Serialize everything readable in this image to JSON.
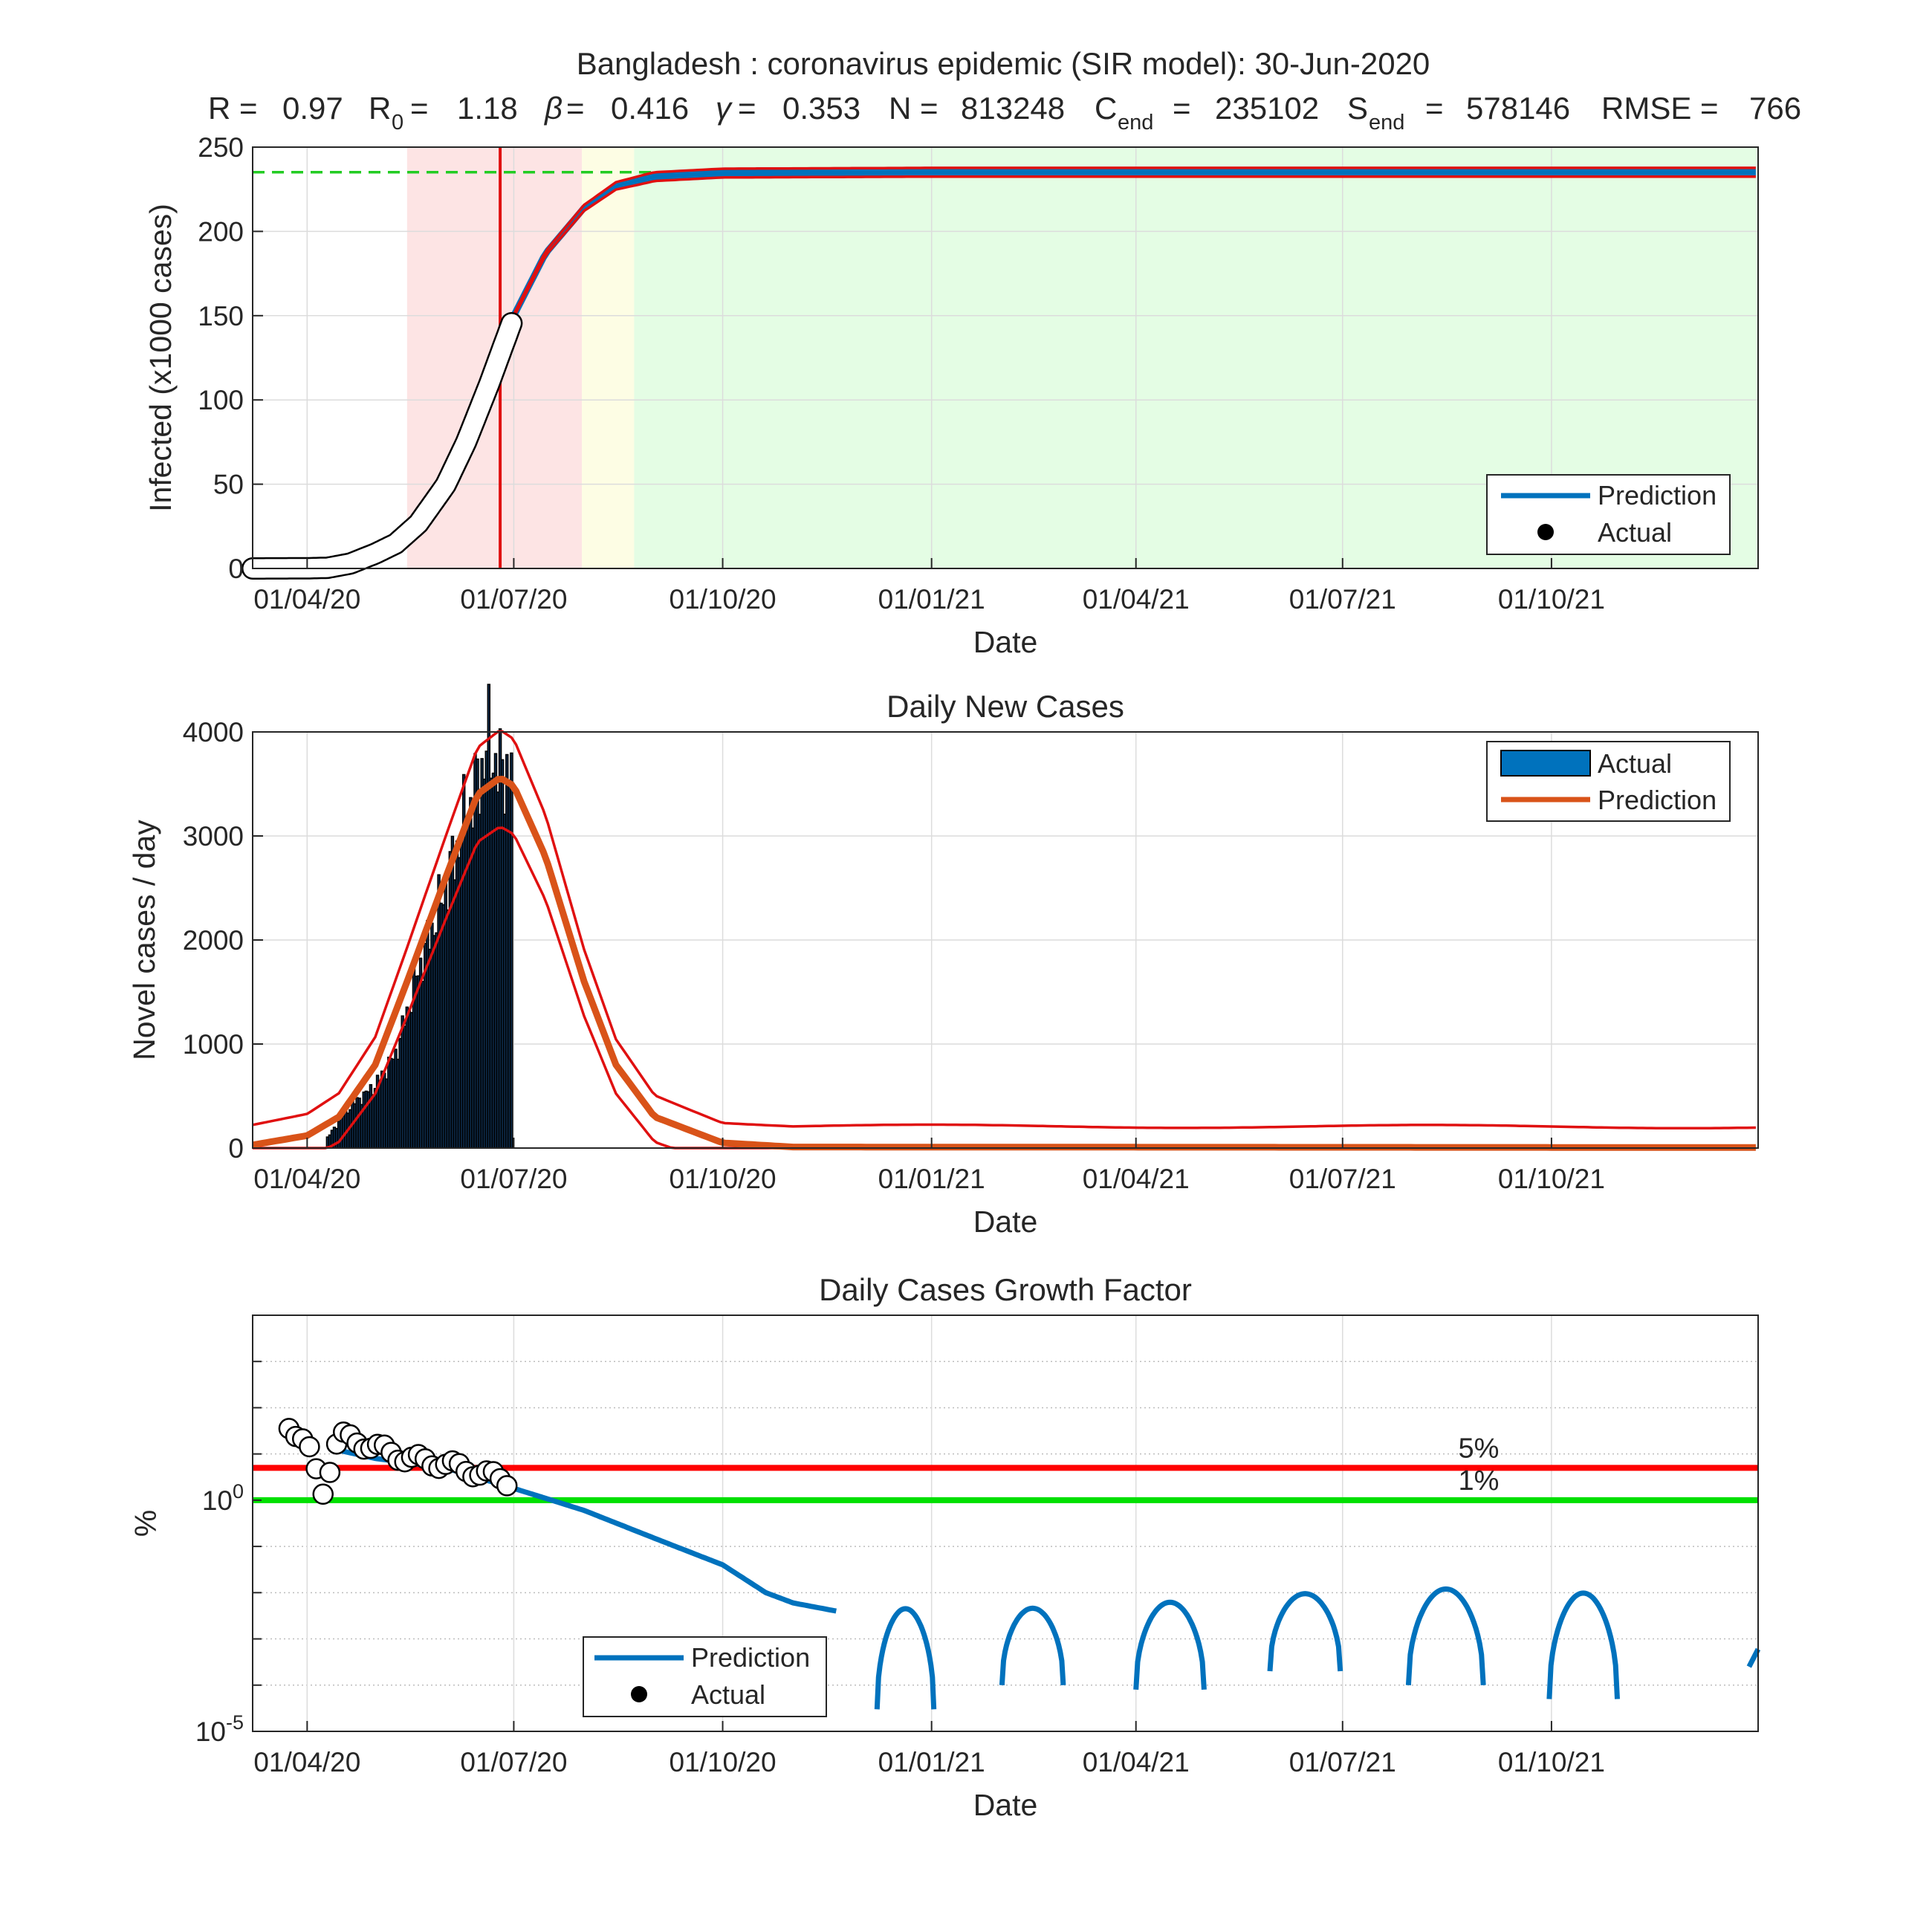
{
  "figure": {
    "suptitle": "Bangladesh : coronavirus epidemic (SIR model): 30-Jun-2020",
    "params": {
      "R_label": "R = ",
      "R_value": "0.97",
      "R0_label": "R",
      "R0_sub": "0",
      "R0_value": "1.18",
      "beta_label": "β",
      "beta_value": "0.416",
      "gamma_label": "γ",
      "gamma_value": "0.353",
      "N_label": "N = ",
      "N_value": "813248",
      "Cend_label": "C",
      "Cend_sub": "end",
      "Cend_value": "235102",
      "Send_label": "S",
      "Send_sub": "end",
      "Send_value": "578146",
      "RMSE_label": "RMSE = ",
      "RMSE_value": "766"
    }
  },
  "chart_data": [
    {
      "type": "line",
      "title": "",
      "xlabel": "Date",
      "ylabel": "Infected (x1000 cases)",
      "ylim": [
        0,
        250
      ],
      "yticks": [
        "0",
        "50",
        "100",
        "150",
        "200",
        "250"
      ],
      "xtick_labels": [
        "01/04/20",
        "01/07/20",
        "01/10/20",
        "01/01/21",
        "01/04/21",
        "01/07/21",
        "01/10/21"
      ],
      "grid": true,
      "legend_position": "bottom-right",
      "legend": [
        "Prediction",
        "Actual"
      ],
      "plateau_level": 235.1,
      "current_date": "2020-06-25",
      "shaded_phases": [
        {
          "start": "2020-05-15",
          "end": "2020-07-31",
          "color": "#fde4e4"
        },
        {
          "start": "2020-07-31",
          "end": "2020-08-23",
          "color": "#fdfde4"
        },
        {
          "start": "2020-08-23",
          "end": "2021-12-31",
          "color": "#e4fde4"
        }
      ],
      "series": [
        {
          "name": "Prediction",
          "color": "#0072bd",
          "x": [
            "2020-03-08",
            "2020-04-01",
            "2020-04-15",
            "2020-05-01",
            "2020-05-15",
            "2020-06-01",
            "2020-06-15",
            "2020-07-01",
            "2020-07-15",
            "2020-08-01",
            "2020-08-15",
            "2020-09-01",
            "2020-10-01",
            "2021-01-01",
            "2021-06-01",
            "2021-12-31"
          ],
          "y": [
            2,
            3,
            6,
            15,
            37,
            70,
            110,
            150,
            187,
            214,
            227,
            232.5,
            234.6,
            235.1,
            235.1,
            235.1
          ]
        },
        {
          "name": "Actual",
          "color": "#000000",
          "x": [
            "2020-03-08",
            "2020-03-20",
            "2020-04-01",
            "2020-04-10",
            "2020-04-20",
            "2020-05-01",
            "2020-05-10",
            "2020-05-20",
            "2020-06-01",
            "2020-06-10",
            "2020-06-20",
            "2020-06-30"
          ],
          "y": [
            0,
            0.05,
            0.1,
            0.4,
            2.9,
            8.8,
            14.7,
            26.7,
            49.5,
            74.9,
            108.8,
            145.5
          ]
        }
      ]
    },
    {
      "type": "bar",
      "title": "Daily New Cases",
      "xlabel": "Date",
      "ylabel": "Novel cases / day",
      "ylim": [
        0,
        4000
      ],
      "yticks": [
        "0",
        "1000",
        "2000",
        "3000",
        "4000"
      ],
      "xtick_labels": [
        "01/04/20",
        "01/07/20",
        "01/10/20",
        "01/01/21",
        "01/04/21",
        "01/07/21",
        "01/10/21"
      ],
      "grid": true,
      "legend_position": "top-right",
      "legend": [
        "Actual",
        "Prediction"
      ],
      "series": [
        {
          "name": "Actual",
          "color": "#0072bd",
          "x": [
            "2020-04-10",
            "2020-04-20",
            "2020-05-01",
            "2020-05-10",
            "2020-05-20",
            "2020-06-01",
            "2020-06-10",
            "2020-06-15",
            "2020-06-20",
            "2020-06-25",
            "2020-06-30"
          ],
          "y": [
            100,
            400,
            600,
            900,
            1700,
            2500,
            3200,
            3500,
            3900,
            3600,
            3700
          ]
        },
        {
          "name": "Prediction",
          "color": "#d95319",
          "x": [
            "2020-03-08",
            "2020-04-01",
            "2020-04-15",
            "2020-05-01",
            "2020-05-15",
            "2020-06-01",
            "2020-06-15",
            "2020-06-25",
            "2020-07-01",
            "2020-07-15",
            "2020-08-01",
            "2020-08-15",
            "2020-09-01",
            "2020-10-01",
            "2020-11-01",
            "2021-12-31"
          ],
          "y": [
            30,
            120,
            300,
            800,
            1600,
            2600,
            3400,
            3560,
            3480,
            2800,
            1600,
            800,
            300,
            50,
            10,
            5
          ]
        }
      ]
    },
    {
      "type": "line",
      "title": "Daily Cases Growth Factor",
      "xlabel": "Date",
      "ylabel": "%",
      "yscale": "log",
      "ylim": [
        1e-05,
        10000
      ],
      "ytick_labels": [
        {
          "base": "10",
          "exp": "0"
        },
        {
          "base": "10",
          "exp": "-5"
        }
      ],
      "xtick_labels": [
        "01/04/20",
        "01/07/20",
        "01/10/20",
        "01/01/21",
        "01/04/21",
        "01/07/21",
        "01/10/21"
      ],
      "grid": true,
      "legend_position": "bottom-left",
      "legend": [
        "Prediction",
        "Actual"
      ],
      "thresholds": [
        {
          "label": "5%",
          "value": 5,
          "color": "#ff0000"
        },
        {
          "label": "1%",
          "value": 1,
          "color": "#00e000"
        }
      ],
      "series": [
        {
          "name": "Prediction",
          "color": "#0072bd",
          "x": [
            "2020-04-15",
            "2020-05-01",
            "2020-06-01",
            "2020-07-01",
            "2020-07-15",
            "2020-08-01",
            "2020-09-01",
            "2020-10-01",
            "2020-10-20",
            "2020-11-01",
            "2020-11-20"
          ],
          "y": [
            12,
            8,
            5,
            1.8,
            1.1,
            0.6,
            0.15,
            0.04,
            0.01,
            0.006,
            0.004
          ]
        },
        {
          "name": "Actual",
          "color": "#000000",
          "x": [
            "2020-03-24",
            "2020-04-01",
            "2020-04-08",
            "2020-04-15",
            "2020-05-01",
            "2020-05-15",
            "2020-06-01",
            "2020-06-15",
            "2020-06-30"
          ],
          "y": [
            45,
            15,
            1.6,
            25,
            14,
            8,
            6,
            4,
            2.5
          ]
        }
      ]
    }
  ]
}
